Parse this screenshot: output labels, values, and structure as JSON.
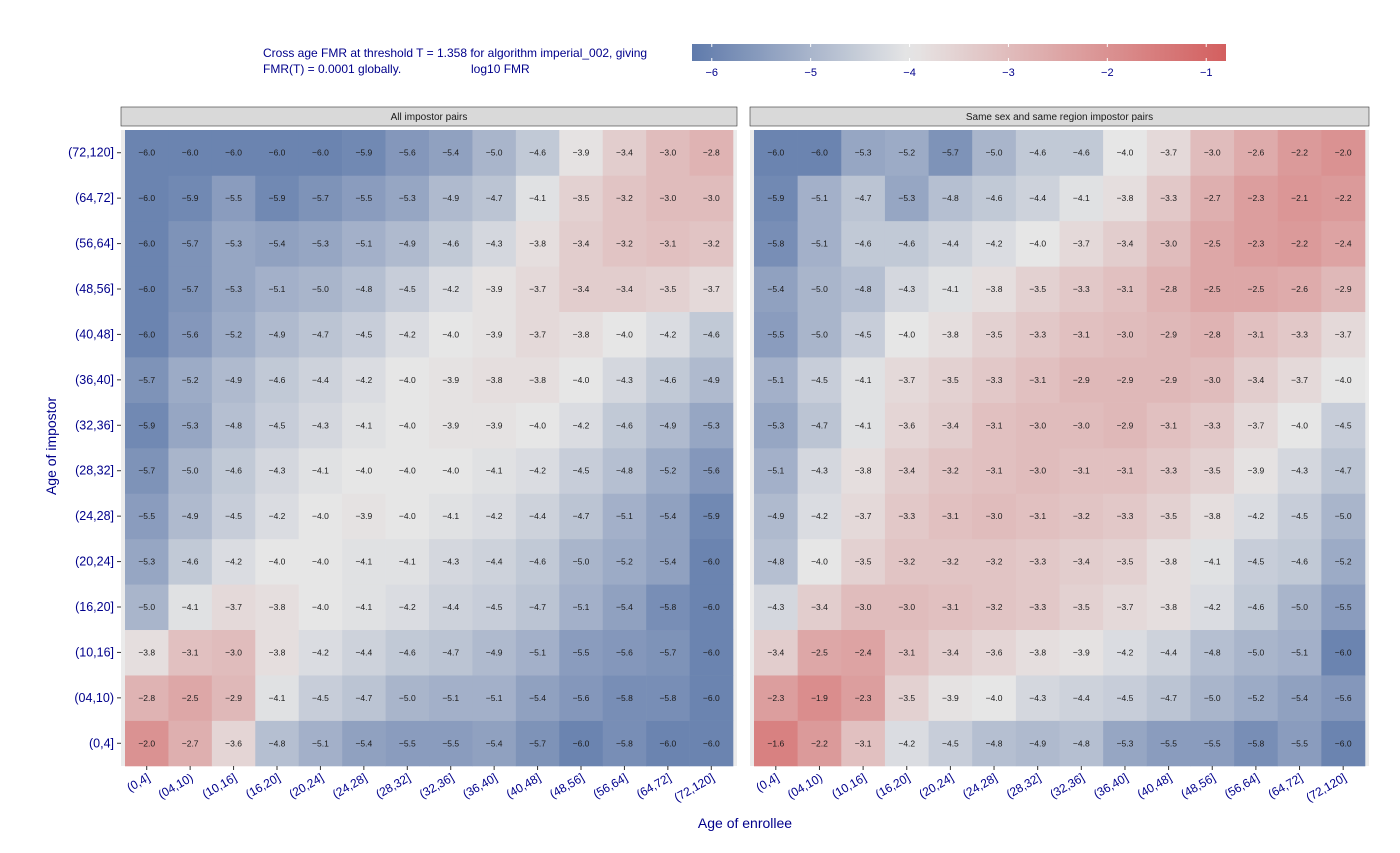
{
  "caption": {
    "line1": "Cross age FMR at threshold T = 1.358 for algorithm imperial_002, giving",
    "line2": "FMR(T) = 0.0001 globally.",
    "legend_title": "log10 FMR"
  },
  "colors": {
    "low": "#5f7aab",
    "mid": "#e6e6e6",
    "high": "#d35f5f",
    "panel_bg": "#ebebeb",
    "strip_bg": "#d9d9d9",
    "text": "#00008b"
  },
  "chart_data": {
    "type": "heatmap",
    "xlabel": "Age of enrollee",
    "ylabel": "Age of impostor",
    "categories": [
      "(0,4]",
      "(04,10)",
      "(10,16]",
      "(16,20]",
      "(20,24]",
      "(24,28]",
      "(28,32]",
      "(32,36]",
      "(36,40]",
      "(40,48]",
      "(48,56]",
      "(56,64]",
      "(64,72]",
      "(72,120]"
    ],
    "color_scale": {
      "label": "log10 FMR",
      "min": -6.2,
      "mid": -4.0,
      "max": -0.8,
      "ticks": [
        -6,
        -5,
        -4,
        -3,
        -2,
        -1
      ]
    },
    "panels": [
      {
        "title": "All impostor pairs",
        "values": [
          [
            -2.0,
            -2.7,
            -3.6,
            -4.8,
            -5.1,
            -5.4,
            -5.5,
            -5.5,
            -5.4,
            -5.7,
            -6.0,
            -5.8,
            -6.0,
            -6.0
          ],
          [
            -2.8,
            -2.5,
            -2.9,
            -4.1,
            -4.5,
            -4.7,
            -5.0,
            -5.1,
            -5.1,
            -5.4,
            -5.6,
            -5.8,
            -5.8,
            -6.0
          ],
          [
            -3.8,
            -3.1,
            -3.0,
            -3.8,
            -4.2,
            -4.4,
            -4.6,
            -4.7,
            -4.9,
            -5.1,
            -5.5,
            -5.6,
            -5.7,
            -6.0
          ],
          [
            -5.0,
            -4.1,
            -3.7,
            -3.8,
            -4.0,
            -4.1,
            -4.2,
            -4.4,
            -4.5,
            -4.7,
            -5.1,
            -5.4,
            -5.8,
            -6.0
          ],
          [
            -5.3,
            -4.6,
            -4.2,
            -4.0,
            -4.0,
            -4.1,
            -4.1,
            -4.3,
            -4.4,
            -4.6,
            -5.0,
            -5.2,
            -5.4,
            -6.0
          ],
          [
            -5.5,
            -4.9,
            -4.5,
            -4.2,
            -4.0,
            -3.9,
            -4.0,
            -4.1,
            -4.2,
            -4.4,
            -4.7,
            -5.1,
            -5.4,
            -5.9
          ],
          [
            -5.7,
            -5.0,
            -4.6,
            -4.3,
            -4.1,
            -4.0,
            -4.0,
            -4.0,
            -4.1,
            -4.2,
            -4.5,
            -4.8,
            -5.2,
            -5.6
          ],
          [
            -5.9,
            -5.3,
            -4.8,
            -4.5,
            -4.3,
            -4.1,
            -4.0,
            -3.9,
            -3.9,
            -4.0,
            -4.2,
            -4.6,
            -4.9,
            -5.3
          ],
          [
            -5.7,
            -5.2,
            -4.9,
            -4.6,
            -4.4,
            -4.2,
            -4.0,
            -3.9,
            -3.8,
            -3.8,
            -4.0,
            -4.3,
            -4.6,
            -4.9
          ],
          [
            -6.0,
            -5.6,
            -5.2,
            -4.9,
            -4.7,
            -4.5,
            -4.2,
            -4.0,
            -3.9,
            -3.7,
            -3.8,
            -4.0,
            -4.2,
            -4.6
          ],
          [
            -6.0,
            -5.7,
            -5.3,
            -5.1,
            -5.0,
            -4.8,
            -4.5,
            -4.2,
            -3.9,
            -3.7,
            -3.4,
            -3.4,
            -3.5,
            -3.7
          ],
          [
            -6.0,
            -5.7,
            -5.3,
            -5.4,
            -5.3,
            -5.1,
            -4.9,
            -4.6,
            -4.3,
            -3.8,
            -3.4,
            -3.2,
            -3.1,
            -3.2
          ],
          [
            -6.0,
            -5.9,
            -5.5,
            -5.9,
            -5.7,
            -5.5,
            -5.3,
            -4.9,
            -4.7,
            -4.1,
            -3.5,
            -3.2,
            -3.0,
            -3.0
          ],
          [
            -6.0,
            -6.0,
            -6.0,
            -6.0,
            -6.0,
            -5.9,
            -5.6,
            -5.4,
            -5.0,
            -4.6,
            -3.9,
            -3.4,
            -3.0,
            -2.8
          ]
        ]
      },
      {
        "title": "Same sex and same region impostor pairs",
        "values": [
          [
            -1.6,
            -2.2,
            -3.1,
            -4.2,
            -4.5,
            -4.8,
            -4.9,
            -4.8,
            -5.3,
            -5.5,
            -5.5,
            -5.8,
            -5.5,
            -6.0
          ],
          [
            -2.3,
            -1.9,
            -2.3,
            -3.5,
            -3.9,
            -4.0,
            -4.3,
            -4.4,
            -4.5,
            -4.7,
            -5.0,
            -5.2,
            -5.4,
            -5.6
          ],
          [
            -3.4,
            -2.5,
            -2.4,
            -3.1,
            -3.4,
            -3.6,
            -3.8,
            -3.9,
            -4.2,
            -4.4,
            -4.8,
            -5.0,
            -5.1,
            -6.0
          ],
          [
            -4.3,
            -3.4,
            -3.0,
            -3.0,
            -3.1,
            -3.2,
            -3.3,
            -3.5,
            -3.7,
            -3.8,
            -4.2,
            -4.6,
            -5.0,
            -5.5
          ],
          [
            -4.8,
            -4.0,
            -3.5,
            -3.2,
            -3.2,
            -3.2,
            -3.3,
            -3.4,
            -3.5,
            -3.8,
            -4.1,
            -4.5,
            -4.6,
            -5.2
          ],
          [
            -4.9,
            -4.2,
            -3.7,
            -3.3,
            -3.1,
            -3.0,
            -3.1,
            -3.2,
            -3.3,
            -3.5,
            -3.8,
            -4.2,
            -4.5,
            -5.0
          ],
          [
            -5.1,
            -4.3,
            -3.8,
            -3.4,
            -3.2,
            -3.1,
            -3.0,
            -3.1,
            -3.1,
            -3.3,
            -3.5,
            -3.9,
            -4.3,
            -4.7
          ],
          [
            -5.3,
            -4.7,
            -4.1,
            -3.6,
            -3.4,
            -3.1,
            -3.0,
            -3.0,
            -2.9,
            -3.1,
            -3.3,
            -3.7,
            -4.0,
            -4.5
          ],
          [
            -5.1,
            -4.5,
            -4.1,
            -3.7,
            -3.5,
            -3.3,
            -3.1,
            -2.9,
            -2.9,
            -2.9,
            -3.0,
            -3.4,
            -3.7,
            -4.0
          ],
          [
            -5.5,
            -5.0,
            -4.5,
            -4.0,
            -3.8,
            -3.5,
            -3.3,
            -3.1,
            -3.0,
            -2.9,
            -2.8,
            -3.1,
            -3.3,
            -3.7
          ],
          [
            -5.4,
            -5.0,
            -4.8,
            -4.3,
            -4.1,
            -3.8,
            -3.5,
            -3.3,
            -3.1,
            -2.8,
            -2.5,
            -2.5,
            -2.6,
            -2.9
          ],
          [
            -5.8,
            -5.1,
            -4.6,
            -4.6,
            -4.4,
            -4.2,
            -4.0,
            -3.7,
            -3.4,
            -3.0,
            -2.5,
            -2.3,
            -2.2,
            -2.4
          ],
          [
            -5.9,
            -5.1,
            -4.7,
            -5.3,
            -4.8,
            -4.6,
            -4.4,
            -4.1,
            -3.8,
            -3.3,
            -2.7,
            -2.3,
            -2.1,
            -2.2
          ],
          [
            -6.0,
            -6.0,
            -5.3,
            -5.2,
            -5.7,
            -5.0,
            -4.6,
            -4.6,
            -4.0,
            -3.7,
            -3.0,
            -2.6,
            -2.2,
            -2.0
          ]
        ]
      }
    ]
  }
}
